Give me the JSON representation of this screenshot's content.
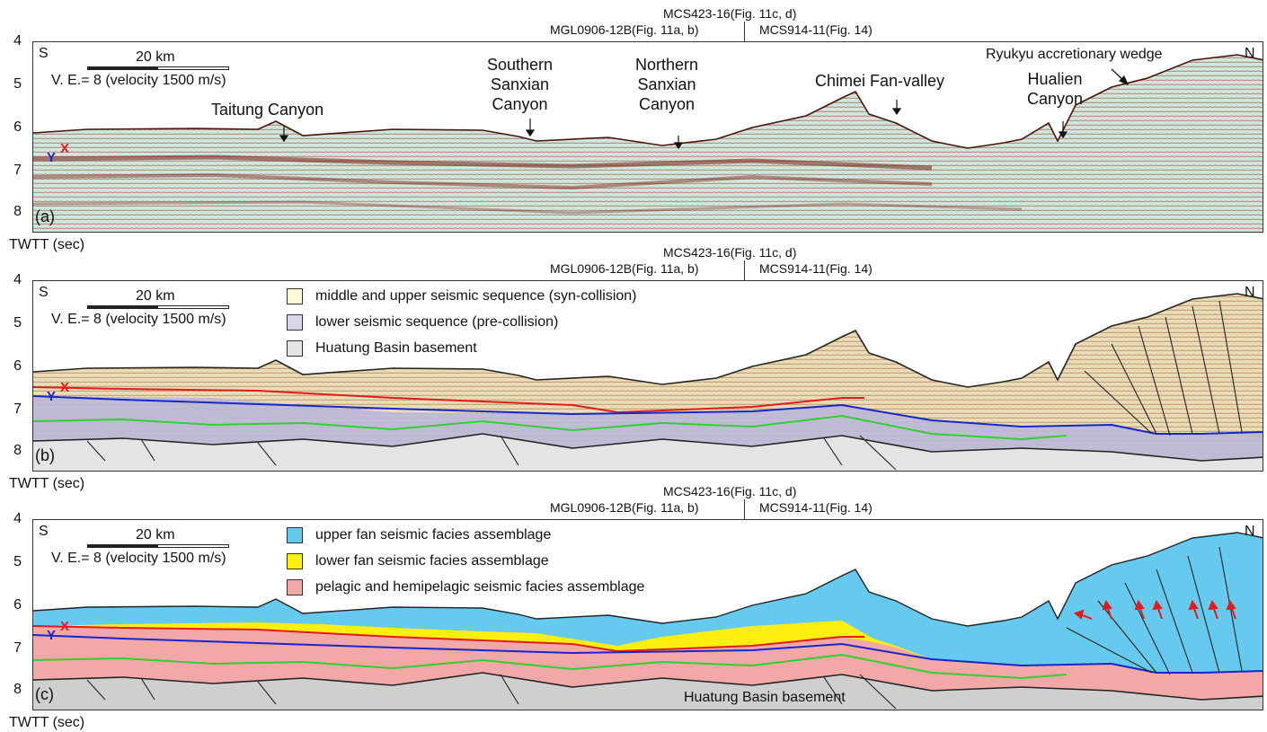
{
  "figure": {
    "ref_lines": {
      "mcs423": "MCS423-16(Fig. 11c, d)",
      "mgl0906": "MGL0906-12B(Fig. 11a, b)",
      "mcs914": "MCS914-11(Fig. 14)"
    },
    "y_ticks": [
      "4",
      "5",
      "6",
      "7",
      "8"
    ],
    "y_axis_label": "TWTT (sec)",
    "south": "S",
    "north": "N",
    "scale_label": "20 km",
    "ve_label": "V. E.= 8 (velocity 1500 m/s)",
    "marker_x": "X",
    "marker_y": "Y"
  },
  "panel_a": {
    "letter": "(a)",
    "labels": {
      "taitung": "Taitung Canyon",
      "southern": "Southern\nSanxian\nCanyon",
      "northern": "Northern\nSanxian\nCanyon",
      "chimei": "Chimei Fan-valley",
      "hualien": "Hualien\nCanyon",
      "ryukyu": "Ryukyu accretionary wedge"
    }
  },
  "panel_b": {
    "letter": "(b)",
    "legend": [
      {
        "label": "middle and upper seismic sequence (syn-collision)",
        "color": "#fff7d6"
      },
      {
        "label": "lower seismic sequence (pre-collision)",
        "color": "#d8d6ea"
      },
      {
        "label": "Huatung Basin basement",
        "color": "#e4e4e4"
      }
    ]
  },
  "panel_c": {
    "letter": "(c)",
    "legend": [
      {
        "label": "upper fan seismic facies assemblage",
        "color": "#66c9ee"
      },
      {
        "label": "lower fan seismic facies assemblage",
        "color": "#ffef10"
      },
      {
        "label": "pelagic and hemipelagic seismic facies assemblage",
        "color": "#f3a8a8"
      }
    ],
    "basement_label": "Huatung Basin basement"
  },
  "colors": {
    "seismic_bg": "#cfe6dc",
    "seismic_reflector": "#7a1a10",
    "red_horizon": "#e31b1b",
    "blue_horizon": "#1728c8",
    "green_horizon": "#2fd02f",
    "fault": "#222222"
  }
}
